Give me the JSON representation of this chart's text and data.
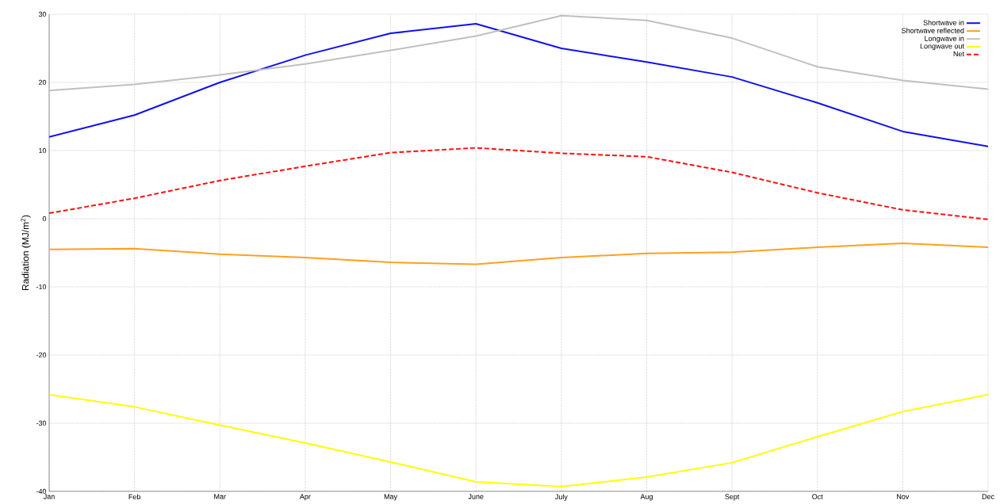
{
  "chart_data": {
    "type": "line",
    "ylabel": "Radiation (MJ/m$^{2}$)",
    "categories": [
      "Jan",
      "Feb",
      "Mar",
      "Apr",
      "May",
      "June",
      "July",
      "Aug",
      "Sept",
      "Oct",
      "Nov",
      "Dec"
    ],
    "ylim": [
      -40,
      30
    ],
    "yticks": [
      -40,
      -30,
      -20,
      -10,
      0,
      10,
      20,
      30
    ],
    "grid": true,
    "legend": "top right",
    "series": [
      {
        "name": "Shortwave in",
        "color": "#1010f0",
        "values": [
          12,
          15.2,
          20,
          24,
          27.2,
          28.6,
          25,
          23,
          20.8,
          17,
          12.8,
          10.6
        ]
      },
      {
        "name": "Shortwave reflected",
        "color": "#ffa020",
        "values": [
          -4.5,
          -4.4,
          -5.2,
          -5.7,
          -6.4,
          -6.7,
          -5.7,
          -5.1,
          -4.9,
          -4.2,
          -3.6,
          -4.2
        ]
      },
      {
        "name": "Longwave in",
        "color": "#c0c0c0",
        "values": [
          18.8,
          19.7,
          21.1,
          22.7,
          24.7,
          26.8,
          29.8,
          29.1,
          26.5,
          22.3,
          20.3,
          19.0
        ]
      },
      {
        "name": "Longwave out",
        "color": "#ffff00",
        "values": [
          -25.8,
          -27.6,
          -30.3,
          -32.9,
          -35.7,
          -38.6,
          -39.3,
          -37.9,
          -35.8,
          -32.0,
          -28.3,
          -25.8
        ]
      },
      {
        "name": "Net",
        "color": "#ff1010",
        "line_style": "dashed",
        "values": [
          0.8,
          3.0,
          5.6,
          7.7,
          9.7,
          10.4,
          9.6,
          9.1,
          6.8,
          3.8,
          1.3,
          -0.1
        ]
      }
    ]
  }
}
